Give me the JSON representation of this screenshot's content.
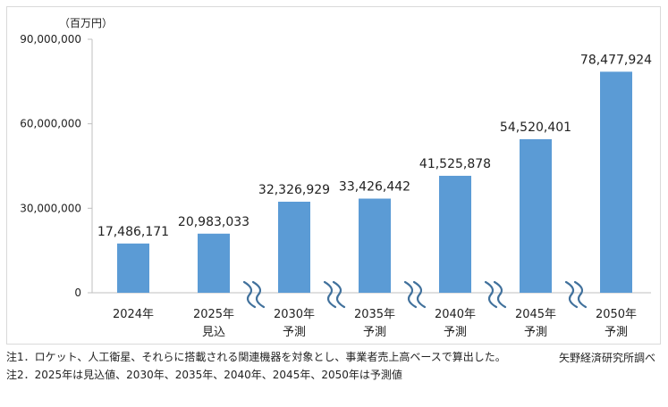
{
  "chart_data": {
    "type": "bar",
    "unit_label": "（百万円）",
    "categories": [
      [
        "2024年",
        ""
      ],
      [
        "2025年",
        "見込"
      ],
      [
        "2030年",
        "予測"
      ],
      [
        "2035年",
        "予測"
      ],
      [
        "2040年",
        "予測"
      ],
      [
        "2045年",
        "予測"
      ],
      [
        "2050年",
        "予測"
      ]
    ],
    "values": [
      17486171,
      20983033,
      32326929,
      33426442,
      41525878,
      54520401,
      78477924
    ],
    "value_labels": [
      "17,486,171",
      "20,983,033",
      "32,326,929",
      "33,426,442",
      "41,525,878",
      "54,520,401",
      "78,477,924"
    ],
    "yticks": [
      0,
      30000000,
      60000000,
      90000000
    ],
    "ytick_labels": [
      "0",
      "30,000,000",
      "60,000,000",
      "90,000,000"
    ],
    "ylim": [
      0,
      90000000
    ],
    "bar_color": "#5b9bd5",
    "break_color": "#41719c",
    "axis_breaks_between": [
      [
        1,
        2
      ],
      [
        2,
        3
      ],
      [
        3,
        4
      ],
      [
        4,
        5
      ],
      [
        5,
        6
      ]
    ],
    "grid": false,
    "legend": false
  },
  "notes": {
    "note1": "注1．ロケット、人工衛星、それらに搭載される関連機器を対象とし、事業者売上高ベースで算出した。",
    "note2": "注2．2025年は見込値、2030年、2035年、2040年、2045年、2050年は予測値",
    "source": "矢野経済研究所調べ"
  }
}
